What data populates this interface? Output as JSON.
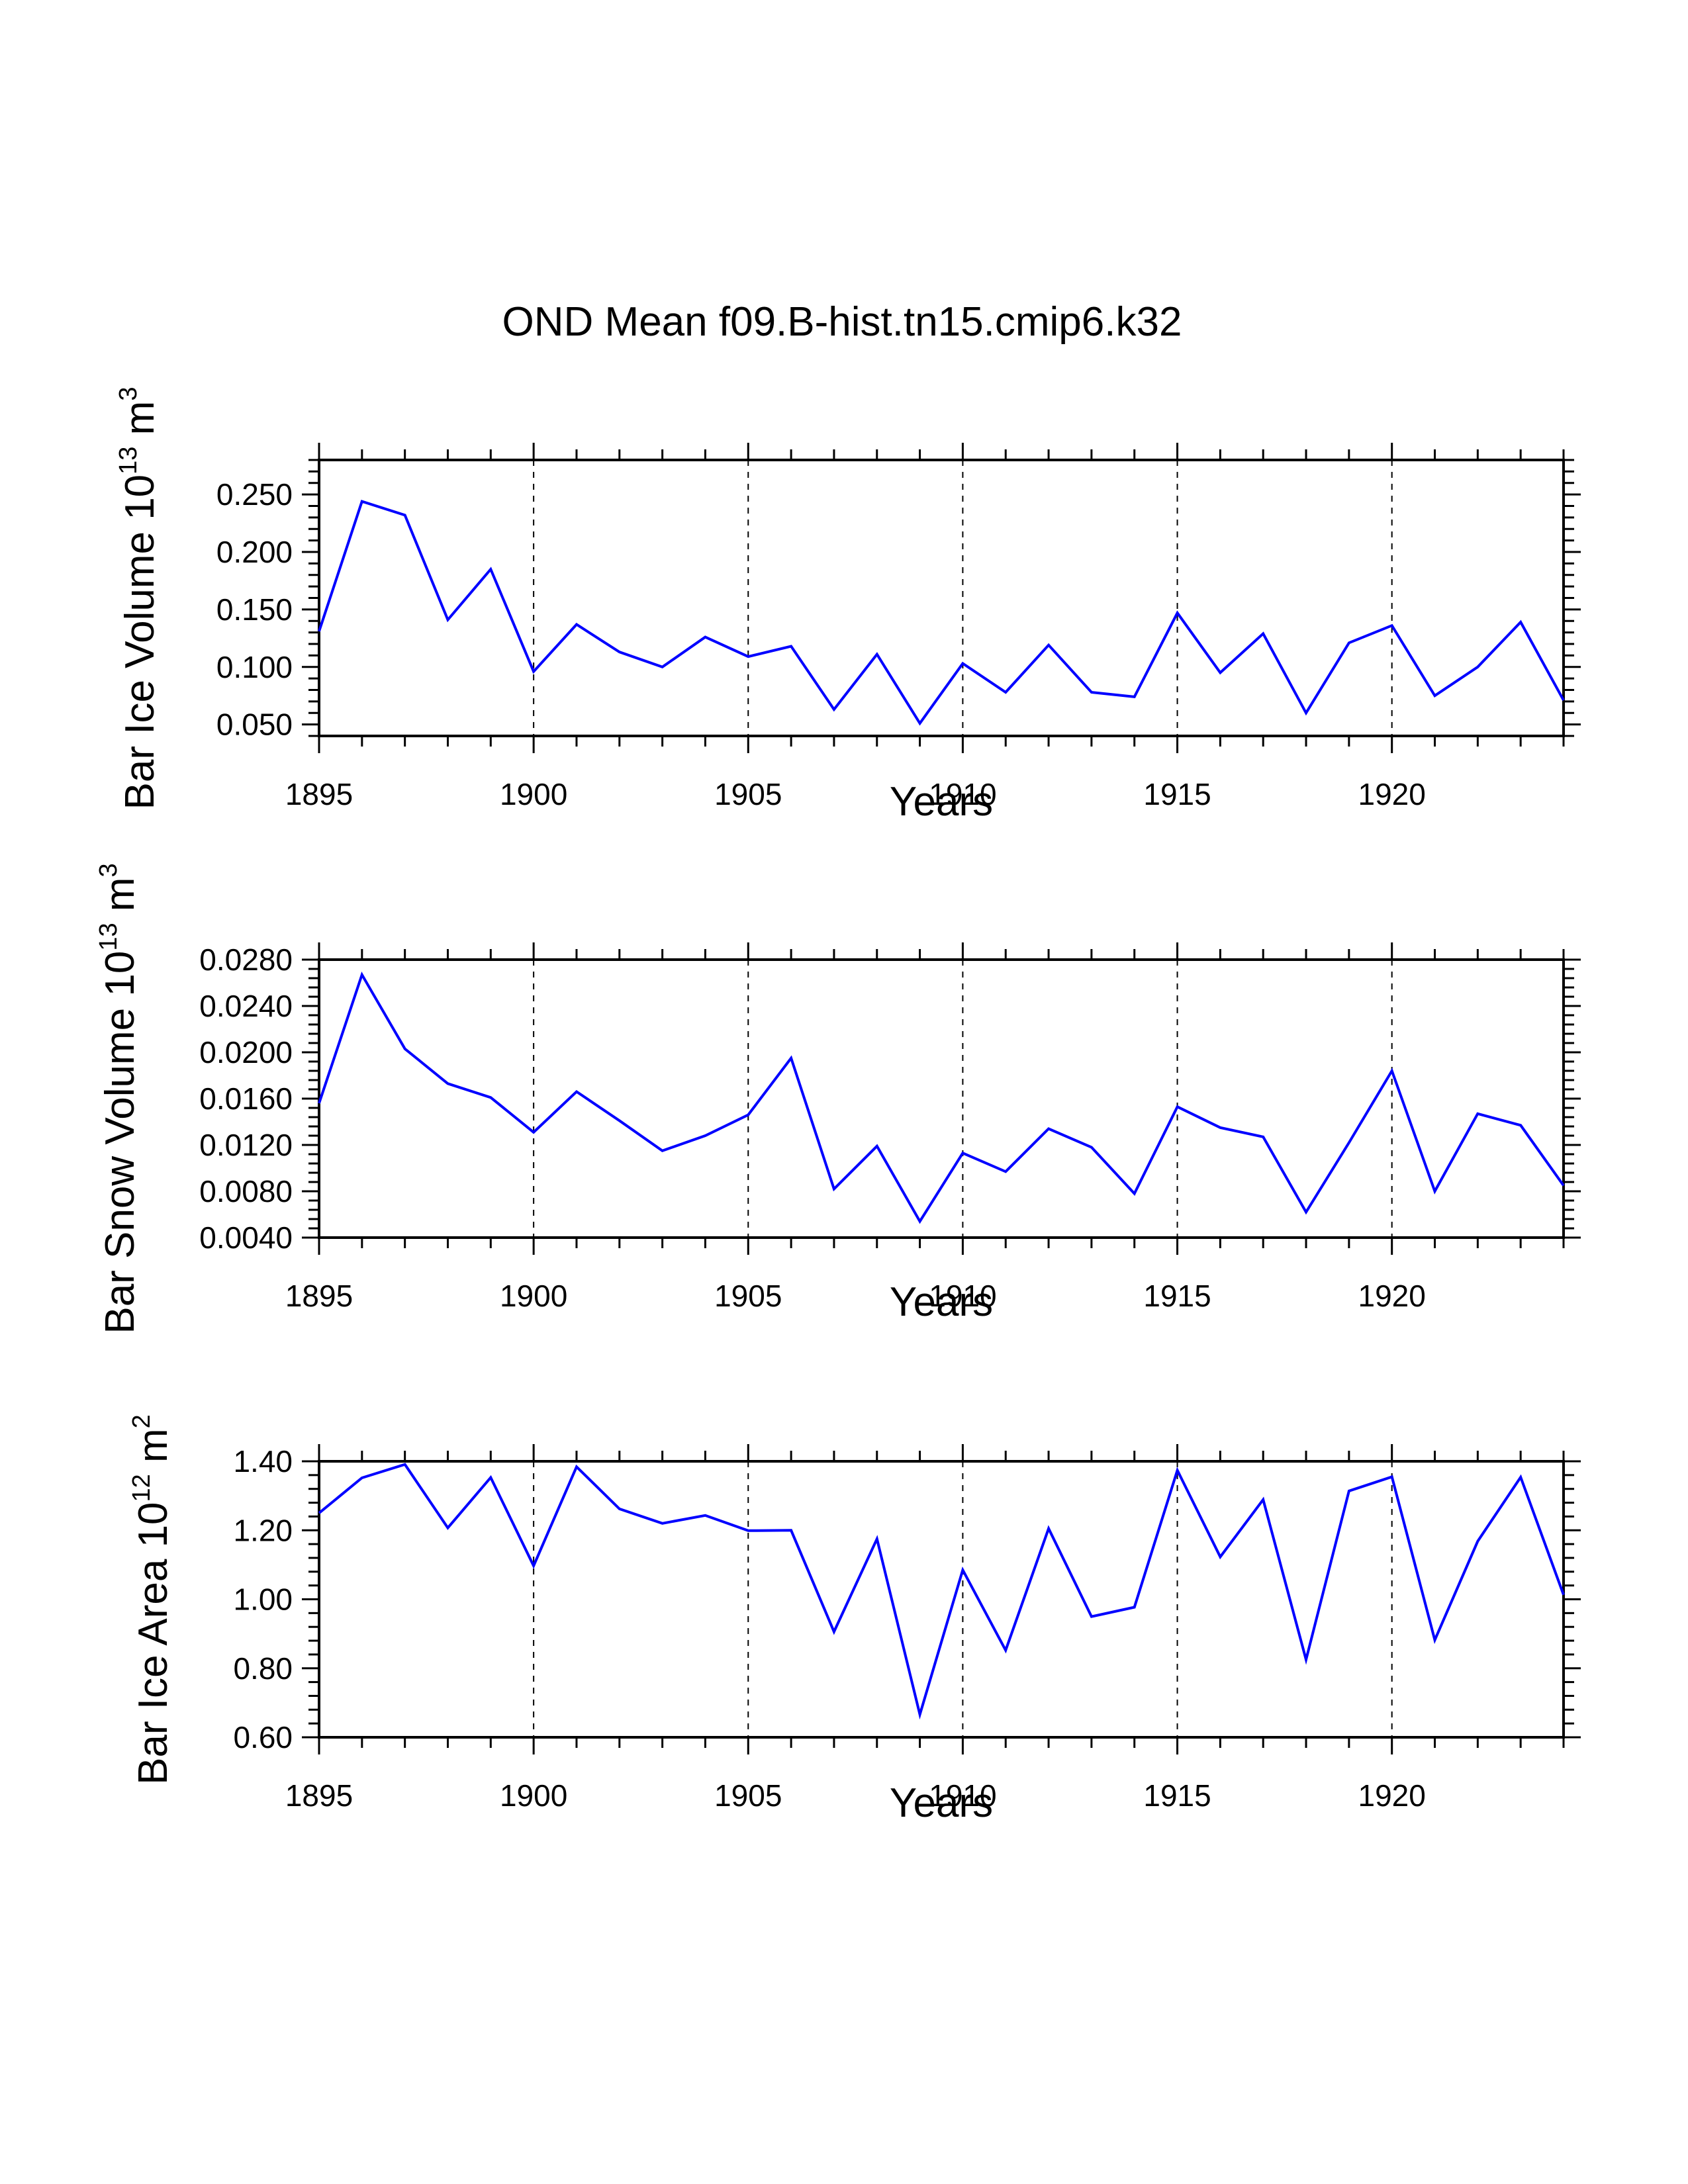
{
  "title": "OND Mean f09.B-hist.tn15.cmip6.k32",
  "colors": {
    "series": "#0000ff",
    "axis": "#000000",
    "grid": "#000000",
    "background": "#ffffff"
  },
  "chart_data": [
    {
      "type": "line",
      "title": "",
      "xlabel": "Years",
      "ylabel": {
        "text": "Bar Ice Volume 10",
        "exp": "13",
        "unit": " m",
        "unit_exp": "3"
      },
      "xlim": [
        1895,
        1924
      ],
      "ylim": [
        0.04,
        0.28
      ],
      "xticks": [
        1895,
        1900,
        1905,
        1910,
        1915,
        1920
      ],
      "xtick_labels": [
        "1895",
        "1900",
        "1905",
        "1910",
        "1915",
        "1920"
      ],
      "yticks": [
        0.05,
        0.1,
        0.15,
        0.2,
        0.25
      ],
      "ytick_labels": [
        "0.050",
        "0.100",
        "0.150",
        "0.200",
        "0.250"
      ],
      "grid": "vertical-dashed",
      "x": [
        1895,
        1896,
        1897,
        1898,
        1899,
        1900,
        1901,
        1902,
        1903,
        1904,
        1905,
        1906,
        1907,
        1908,
        1909,
        1910,
        1911,
        1912,
        1913,
        1914,
        1915,
        1916,
        1917,
        1918,
        1919,
        1920,
        1921,
        1922,
        1923,
        1924
      ],
      "values": [
        0.131,
        0.244,
        0.232,
        0.141,
        0.185,
        0.096,
        0.137,
        0.113,
        0.1,
        0.126,
        0.109,
        0.118,
        0.063,
        0.111,
        0.051,
        0.103,
        0.078,
        0.119,
        0.078,
        0.074,
        0.147,
        0.095,
        0.129,
        0.06,
        0.121,
        0.136,
        0.075,
        0.1,
        0.139,
        0.071
      ]
    },
    {
      "type": "line",
      "title": "",
      "xlabel": "Years",
      "ylabel": {
        "text": "Bar Snow Volume 10",
        "exp": "13",
        "unit": " m",
        "unit_exp": "3"
      },
      "xlim": [
        1895,
        1924
      ],
      "ylim": [
        0.004,
        0.028
      ],
      "xticks": [
        1895,
        1900,
        1905,
        1910,
        1915,
        1920
      ],
      "xtick_labels": [
        "1895",
        "1900",
        "1905",
        "1910",
        "1915",
        "1920"
      ],
      "yticks": [
        0.004,
        0.008,
        0.012,
        0.016,
        0.02,
        0.024,
        0.028
      ],
      "ytick_labels": [
        "0.0040",
        "0.0080",
        "0.0120",
        "0.0160",
        "0.0200",
        "0.0240",
        "0.0280"
      ],
      "grid": "vertical-dashed",
      "x": [
        1895,
        1896,
        1897,
        1898,
        1899,
        1900,
        1901,
        1902,
        1903,
        1904,
        1905,
        1906,
        1907,
        1908,
        1909,
        1910,
        1911,
        1912,
        1913,
        1914,
        1915,
        1916,
        1917,
        1918,
        1919,
        1920,
        1921,
        1922,
        1923,
        1924
      ],
      "values": [
        0.0156,
        0.0267,
        0.0203,
        0.0173,
        0.0161,
        0.0131,
        0.0166,
        0.0141,
        0.0115,
        0.0128,
        0.0146,
        0.0195,
        0.0082,
        0.0119,
        0.0054,
        0.0113,
        0.0097,
        0.0134,
        0.0118,
        0.0078,
        0.0153,
        0.0135,
        0.0127,
        0.0062,
        0.0122,
        0.0184,
        0.008,
        0.0147,
        0.0137,
        0.0085
      ]
    },
    {
      "type": "line",
      "title": "",
      "xlabel": "Years",
      "ylabel": {
        "text": "Bar Ice Area 10",
        "exp": "12",
        "unit": " m",
        "unit_exp": "2"
      },
      "xlim": [
        1895,
        1924
      ],
      "ylim": [
        0.6,
        1.4
      ],
      "xticks": [
        1895,
        1900,
        1905,
        1910,
        1915,
        1920
      ],
      "xtick_labels": [
        "1895",
        "1900",
        "1905",
        "1910",
        "1915",
        "1920"
      ],
      "yticks": [
        0.6,
        0.8,
        1.0,
        1.2,
        1.4
      ],
      "ytick_labels": [
        "0.60",
        "0.80",
        "1.00",
        "1.20",
        "1.40"
      ],
      "grid": "vertical-dashed",
      "x": [
        1895,
        1896,
        1897,
        1898,
        1899,
        1900,
        1901,
        1902,
        1903,
        1904,
        1905,
        1906,
        1907,
        1908,
        1909,
        1910,
        1911,
        1912,
        1913,
        1914,
        1915,
        1916,
        1917,
        1918,
        1919,
        1920,
        1921,
        1922,
        1923,
        1924
      ],
      "values": [
        1.25,
        1.352,
        1.391,
        1.207,
        1.353,
        1.097,
        1.384,
        1.262,
        1.22,
        1.243,
        1.199,
        1.2,
        0.906,
        1.175,
        0.666,
        1.085,
        0.852,
        1.205,
        0.95,
        0.977,
        1.374,
        1.123,
        1.289,
        0.825,
        1.314,
        1.355,
        0.882,
        1.168,
        1.354,
        1.013
      ]
    }
  ]
}
